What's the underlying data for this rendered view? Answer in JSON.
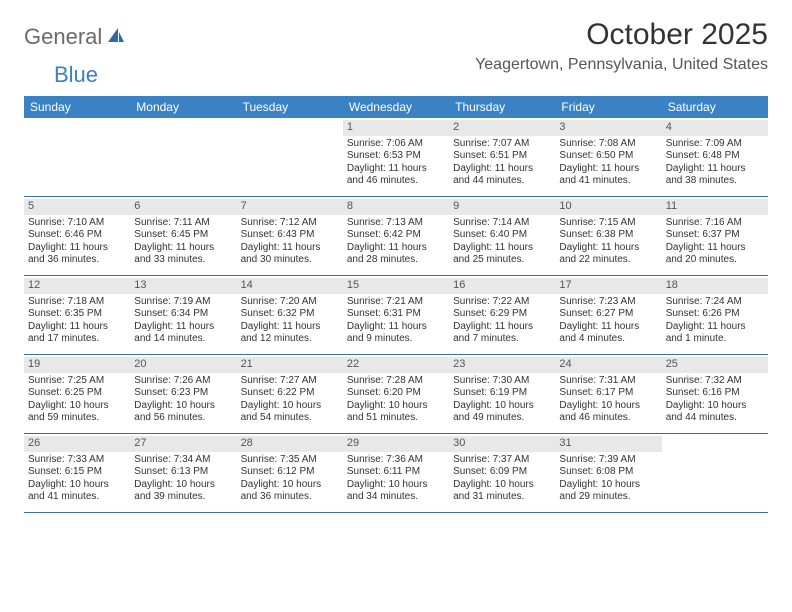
{
  "logo": {
    "gray": "General",
    "blue": "Blue"
  },
  "title": "October 2025",
  "location": "Yeagertown, Pennsylvania, United States",
  "colors": {
    "header_bg": "#3b82c4",
    "header_text": "#ffffff",
    "daynum_bg": "#e8e8e8",
    "border": "#3b6fa0",
    "logo_gray": "#6b6b6b",
    "logo_blue": "#3b7fc4"
  },
  "day_headers": [
    "Sunday",
    "Monday",
    "Tuesday",
    "Wednesday",
    "Thursday",
    "Friday",
    "Saturday"
  ],
  "weeks": [
    [
      {
        "n": "",
        "sr": "",
        "ss": "",
        "dl": ""
      },
      {
        "n": "",
        "sr": "",
        "ss": "",
        "dl": ""
      },
      {
        "n": "",
        "sr": "",
        "ss": "",
        "dl": ""
      },
      {
        "n": "1",
        "sr": "7:06 AM",
        "ss": "6:53 PM",
        "dl": "11 hours and 46 minutes."
      },
      {
        "n": "2",
        "sr": "7:07 AM",
        "ss": "6:51 PM",
        "dl": "11 hours and 44 minutes."
      },
      {
        "n": "3",
        "sr": "7:08 AM",
        "ss": "6:50 PM",
        "dl": "11 hours and 41 minutes."
      },
      {
        "n": "4",
        "sr": "7:09 AM",
        "ss": "6:48 PM",
        "dl": "11 hours and 38 minutes."
      }
    ],
    [
      {
        "n": "5",
        "sr": "7:10 AM",
        "ss": "6:46 PM",
        "dl": "11 hours and 36 minutes."
      },
      {
        "n": "6",
        "sr": "7:11 AM",
        "ss": "6:45 PM",
        "dl": "11 hours and 33 minutes."
      },
      {
        "n": "7",
        "sr": "7:12 AM",
        "ss": "6:43 PM",
        "dl": "11 hours and 30 minutes."
      },
      {
        "n": "8",
        "sr": "7:13 AM",
        "ss": "6:42 PM",
        "dl": "11 hours and 28 minutes."
      },
      {
        "n": "9",
        "sr": "7:14 AM",
        "ss": "6:40 PM",
        "dl": "11 hours and 25 minutes."
      },
      {
        "n": "10",
        "sr": "7:15 AM",
        "ss": "6:38 PM",
        "dl": "11 hours and 22 minutes."
      },
      {
        "n": "11",
        "sr": "7:16 AM",
        "ss": "6:37 PM",
        "dl": "11 hours and 20 minutes."
      }
    ],
    [
      {
        "n": "12",
        "sr": "7:18 AM",
        "ss": "6:35 PM",
        "dl": "11 hours and 17 minutes."
      },
      {
        "n": "13",
        "sr": "7:19 AM",
        "ss": "6:34 PM",
        "dl": "11 hours and 14 minutes."
      },
      {
        "n": "14",
        "sr": "7:20 AM",
        "ss": "6:32 PM",
        "dl": "11 hours and 12 minutes."
      },
      {
        "n": "15",
        "sr": "7:21 AM",
        "ss": "6:31 PM",
        "dl": "11 hours and 9 minutes."
      },
      {
        "n": "16",
        "sr": "7:22 AM",
        "ss": "6:29 PM",
        "dl": "11 hours and 7 minutes."
      },
      {
        "n": "17",
        "sr": "7:23 AM",
        "ss": "6:27 PM",
        "dl": "11 hours and 4 minutes."
      },
      {
        "n": "18",
        "sr": "7:24 AM",
        "ss": "6:26 PM",
        "dl": "11 hours and 1 minute."
      }
    ],
    [
      {
        "n": "19",
        "sr": "7:25 AM",
        "ss": "6:25 PM",
        "dl": "10 hours and 59 minutes."
      },
      {
        "n": "20",
        "sr": "7:26 AM",
        "ss": "6:23 PM",
        "dl": "10 hours and 56 minutes."
      },
      {
        "n": "21",
        "sr": "7:27 AM",
        "ss": "6:22 PM",
        "dl": "10 hours and 54 minutes."
      },
      {
        "n": "22",
        "sr": "7:28 AM",
        "ss": "6:20 PM",
        "dl": "10 hours and 51 minutes."
      },
      {
        "n": "23",
        "sr": "7:30 AM",
        "ss": "6:19 PM",
        "dl": "10 hours and 49 minutes."
      },
      {
        "n": "24",
        "sr": "7:31 AM",
        "ss": "6:17 PM",
        "dl": "10 hours and 46 minutes."
      },
      {
        "n": "25",
        "sr": "7:32 AM",
        "ss": "6:16 PM",
        "dl": "10 hours and 44 minutes."
      }
    ],
    [
      {
        "n": "26",
        "sr": "7:33 AM",
        "ss": "6:15 PM",
        "dl": "10 hours and 41 minutes."
      },
      {
        "n": "27",
        "sr": "7:34 AM",
        "ss": "6:13 PM",
        "dl": "10 hours and 39 minutes."
      },
      {
        "n": "28",
        "sr": "7:35 AM",
        "ss": "6:12 PM",
        "dl": "10 hours and 36 minutes."
      },
      {
        "n": "29",
        "sr": "7:36 AM",
        "ss": "6:11 PM",
        "dl": "10 hours and 34 minutes."
      },
      {
        "n": "30",
        "sr": "7:37 AM",
        "ss": "6:09 PM",
        "dl": "10 hours and 31 minutes."
      },
      {
        "n": "31",
        "sr": "7:39 AM",
        "ss": "6:08 PM",
        "dl": "10 hours and 29 minutes."
      },
      {
        "n": "",
        "sr": "",
        "ss": "",
        "dl": ""
      }
    ]
  ],
  "labels": {
    "sunrise": "Sunrise:",
    "sunset": "Sunset:",
    "daylight": "Daylight:"
  }
}
